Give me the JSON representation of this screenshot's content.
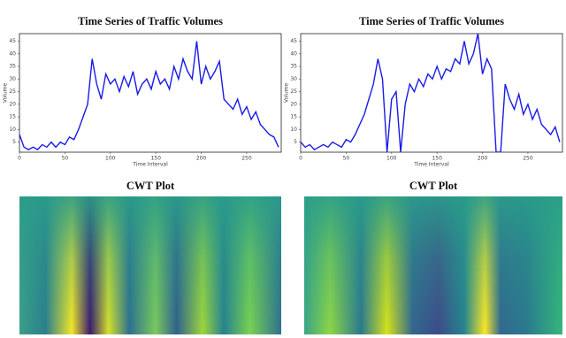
{
  "chart_data": [
    {
      "type": "line",
      "title": "Time Series of Traffic Volumes",
      "xlabel": "Time Interval",
      "ylabel": "Volume",
      "color": "#1a1ae6",
      "xlim": [
        0,
        288
      ],
      "xticks": [
        0,
        50,
        100,
        150,
        200,
        250
      ],
      "ylim": [
        1,
        48
      ],
      "yticks": [
        5,
        10,
        15,
        20,
        25,
        30,
        35,
        40,
        45
      ],
      "x": [
        0,
        5,
        10,
        15,
        20,
        25,
        30,
        35,
        40,
        45,
        50,
        55,
        60,
        65,
        70,
        75,
        80,
        85,
        90,
        95,
        100,
        105,
        110,
        115,
        120,
        125,
        130,
        135,
        140,
        145,
        150,
        155,
        160,
        165,
        170,
        175,
        180,
        185,
        190,
        195,
        200,
        205,
        210,
        215,
        220,
        225,
        230,
        235,
        240,
        245,
        250,
        255,
        260,
        265,
        270,
        275,
        280,
        285
      ],
      "values": [
        8,
        3,
        2,
        3,
        2,
        4,
        3,
        5,
        3,
        5,
        4,
        7,
        6,
        10,
        15,
        20,
        38,
        28,
        22,
        32,
        28,
        30,
        25,
        31,
        27,
        33,
        24,
        28,
        30,
        26,
        33,
        28,
        30,
        26,
        35,
        30,
        38,
        33,
        30,
        45,
        28,
        35,
        30,
        33,
        37,
        22,
        20,
        18,
        22,
        16,
        19,
        14,
        17,
        12,
        10,
        8,
        7,
        3
      ]
    },
    {
      "type": "line",
      "title": "Time Series of Traffic Volumes",
      "xlabel": "Time Interval",
      "ylabel": "Volume",
      "color": "#1a1ae6",
      "xlim": [
        0,
        288
      ],
      "xticks": [
        0,
        50,
        100,
        150,
        200,
        250
      ],
      "ylim": [
        1,
        48
      ],
      "yticks": [
        5,
        10,
        15,
        20,
        25,
        30,
        35,
        40,
        45
      ],
      "x": [
        0,
        5,
        10,
        15,
        20,
        25,
        30,
        35,
        40,
        45,
        50,
        55,
        60,
        65,
        70,
        75,
        80,
        85,
        90,
        95,
        100,
        105,
        110,
        115,
        120,
        125,
        130,
        135,
        140,
        145,
        150,
        155,
        160,
        165,
        170,
        175,
        180,
        185,
        190,
        195,
        200,
        205,
        210,
        215,
        220,
        225,
        230,
        235,
        240,
        245,
        250,
        255,
        260,
        265,
        270,
        275,
        280,
        285
      ],
      "values": [
        5,
        3,
        4,
        2,
        3,
        4,
        3,
        5,
        4,
        3,
        6,
        5,
        8,
        12,
        16,
        22,
        28,
        38,
        30,
        1,
        22,
        25,
        1,
        20,
        28,
        25,
        30,
        27,
        32,
        30,
        35,
        30,
        34,
        33,
        38,
        36,
        45,
        36,
        40,
        48,
        32,
        38,
        34,
        1,
        1,
        28,
        22,
        18,
        24,
        16,
        20,
        14,
        18,
        12,
        10,
        8,
        11,
        5
      ]
    },
    {
      "type": "heatmap",
      "title": "CWT Plot"
    },
    {
      "type": "heatmap",
      "title": "CWT Plot"
    }
  ]
}
